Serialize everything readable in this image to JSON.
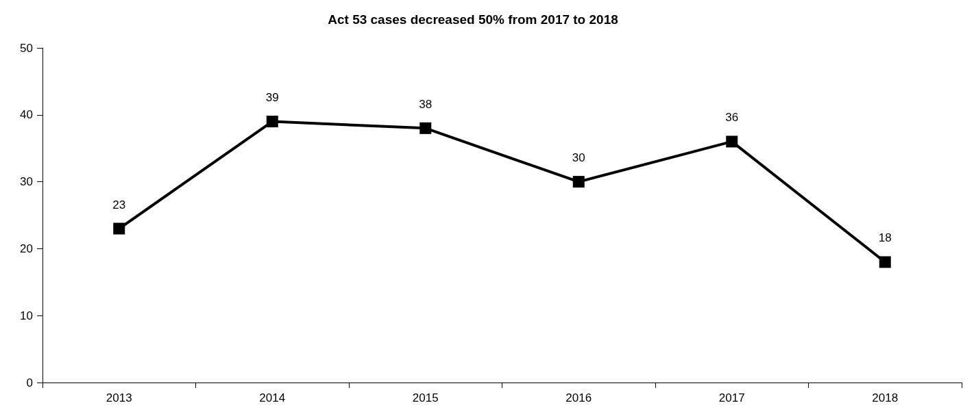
{
  "chart_data": {
    "type": "line",
    "title": "Act 53 cases decreased 50% from 2017 to 2018",
    "categories": [
      "2013",
      "2014",
      "2015",
      "2016",
      "2017",
      "2018"
    ],
    "series": [
      {
        "color": "#000000",
        "values": [
          23,
          39,
          38,
          30,
          36,
          18
        ]
      }
    ],
    "ylim": [
      0,
      50
    ],
    "yticks": [
      0,
      10,
      20,
      30,
      40,
      50
    ],
    "grid": false,
    "marker": "square",
    "line_style": "solid",
    "data_labels": true
  }
}
